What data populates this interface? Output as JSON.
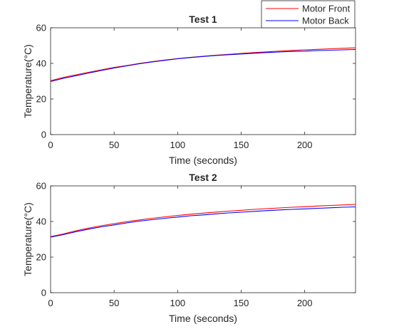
{
  "legend": {
    "entries": [
      {
        "label": "Motor Front",
        "color": "#ff0000"
      },
      {
        "label": "Motor Back",
        "color": "#0000ff"
      }
    ],
    "placement": "top-right"
  },
  "chart_data": [
    {
      "type": "line",
      "title": "Test 1",
      "xlabel": "Time (seconds)",
      "ylabel": "Temperature(°C)",
      "xlim": [
        0,
        240
      ],
      "ylim": [
        0,
        60
      ],
      "xticks": [
        "0",
        "50",
        "100",
        "150",
        "200"
      ],
      "yticks": [
        "0",
        "20",
        "40",
        "60"
      ],
      "grid": false,
      "x": [
        0,
        10,
        20,
        30,
        40,
        50,
        60,
        70,
        80,
        90,
        100,
        110,
        120,
        130,
        140,
        150,
        160,
        170,
        180,
        190,
        200,
        210,
        220,
        230,
        240
      ],
      "series": [
        {
          "name": "Motor Front",
          "color": "#ff0000",
          "values": [
            30.3,
            32.1,
            33.6,
            35.0,
            36.4,
            37.7,
            38.8,
            40.0,
            41.0,
            41.9,
            42.7,
            43.4,
            44.0,
            44.6,
            45.1,
            45.6,
            46.1,
            46.5,
            46.9,
            47.3,
            47.6,
            47.9,
            48.2,
            48.5,
            48.7
          ]
        },
        {
          "name": "Motor Back",
          "color": "#0000ff",
          "values": [
            29.8,
            31.6,
            33.1,
            34.6,
            36.0,
            37.4,
            38.6,
            39.8,
            40.8,
            41.7,
            42.6,
            43.3,
            43.9,
            44.4,
            44.9,
            45.3,
            45.7,
            46.1,
            46.4,
            46.7,
            46.9,
            47.2,
            47.4,
            47.6,
            47.8
          ]
        }
      ]
    },
    {
      "type": "line",
      "title": "Test 2",
      "xlabel": "Time (seconds)",
      "ylabel": "Temperature(°C)",
      "xlim": [
        0,
        240
      ],
      "ylim": [
        0,
        60
      ],
      "xticks": [
        "0",
        "50",
        "100",
        "150",
        "200"
      ],
      "yticks": [
        "0",
        "20",
        "40",
        "60"
      ],
      "grid": false,
      "x": [
        0,
        10,
        20,
        30,
        40,
        50,
        60,
        70,
        80,
        90,
        100,
        110,
        120,
        130,
        140,
        150,
        160,
        170,
        180,
        190,
        200,
        210,
        220,
        230,
        240
      ],
      "series": [
        {
          "name": "Motor Front",
          "color": "#ff0000",
          "values": [
            31.5,
            33.0,
            34.8,
            36.3,
            37.6,
            38.8,
            39.9,
            40.9,
            41.8,
            42.6,
            43.4,
            44.1,
            44.7,
            45.3,
            45.8,
            46.3,
            46.8,
            47.2,
            47.6,
            48.0,
            48.3,
            48.7,
            49.0,
            49.3,
            49.6
          ]
        },
        {
          "name": "Motor Back",
          "color": "#0000ff",
          "values": [
            31.2,
            32.6,
            34.3,
            35.7,
            37.0,
            38.1,
            39.2,
            40.2,
            41.0,
            41.8,
            42.5,
            43.2,
            43.7,
            44.3,
            44.8,
            45.2,
            45.7,
            46.1,
            46.5,
            46.8,
            47.1,
            47.4,
            47.7,
            48.0,
            48.2
          ]
        }
      ]
    }
  ]
}
